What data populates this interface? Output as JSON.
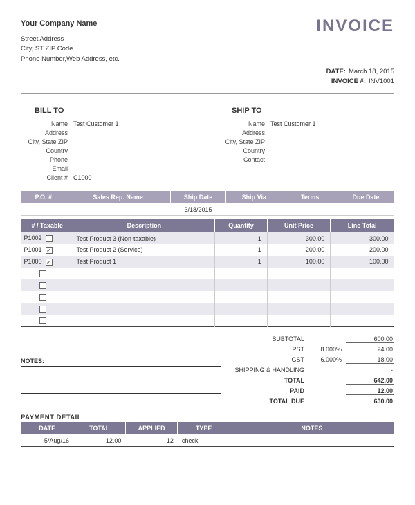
{
  "company": {
    "name": "Your Company Name",
    "line1": "Street Address",
    "line2": "City, ST  ZIP Code",
    "line3": "Phone Number,Web Address, etc."
  },
  "doc": {
    "title": "INVOICE",
    "date_label": "DATE:",
    "date": "March 18, 2015",
    "num_label": "INVOICE #:",
    "num": "INV1001"
  },
  "bill": {
    "title": "BILL TO",
    "labels": {
      "name": "Name",
      "address": "Address",
      "csz": "City, State ZIP",
      "country": "Country",
      "phone": "Phone",
      "email": "Email",
      "client": "Client #"
    },
    "vals": {
      "name": "Test Customer 1",
      "address": "",
      "csz": "",
      "country": "",
      "phone": "",
      "email": "",
      "client": "C1000"
    }
  },
  "ship": {
    "title": "SHIP TO",
    "labels": {
      "name": "Name",
      "address": "Address",
      "csz": "City, State ZIP",
      "country": "Country",
      "contact": "Contact"
    },
    "vals": {
      "name": "Test Customer 1",
      "address": "",
      "csz": "",
      "country": "",
      "contact": ""
    }
  },
  "order_hdr": {
    "po": "P.O. #",
    "rep": "Sales Rep. Name",
    "sdate": "Ship Date",
    "svia": "Ship Via",
    "terms": "Terms",
    "due": "Due Date"
  },
  "order_val": {
    "po": "",
    "rep": "",
    "sdate": "3/18/2015",
    "svia": "",
    "terms": "",
    "due": ""
  },
  "items_hdr": {
    "num": "# / Taxable",
    "desc": "Description",
    "qty": "Quantity",
    "price": "Unit Price",
    "total": "Line Total"
  },
  "items": [
    {
      "num": "P1002",
      "tax": false,
      "desc": "Test Product 3 (Non-taxable)",
      "qty": "1",
      "price": "300.00",
      "total": "300.00"
    },
    {
      "num": "P1001",
      "tax": true,
      "desc": "Test Product 2 (Service)",
      "qty": "1",
      "price": "200.00",
      "total": "200.00"
    },
    {
      "num": "P1000",
      "tax": true,
      "desc": "Test Product 1",
      "qty": "1",
      "price": "100.00",
      "total": "100.00"
    }
  ],
  "blank_rows": 5,
  "totals": {
    "subtotal_label": "SUBTOTAL",
    "subtotal": "600.00",
    "pst_label": "PST",
    "pst_pct": "8.000%",
    "pst": "24.00",
    "gst_label": "GST",
    "gst_pct": "6.000%",
    "gst": "18.00",
    "ship_label": "SHIPPING & HANDLING",
    "ship": "-",
    "total_label": "TOTAL",
    "total": "642.00",
    "paid_label": "PAID",
    "paid": "12.00",
    "due_label": "TOTAL DUE",
    "due": "630.00"
  },
  "notes_label": "NOTES:",
  "payment": {
    "title": "PAYMENT DETAIL",
    "hdr": {
      "date": "DATE",
      "total": "TOTAL",
      "applied": "APPLIED",
      "type": "TYPE",
      "notes": "NOTES"
    },
    "rows": [
      {
        "date": "5/Aug/16",
        "total": "12.00",
        "applied": "12",
        "type": "check",
        "notes": ""
      }
    ]
  },
  "colors": {
    "accent_light": "#a7a2b8",
    "accent_dark": "#7d7994"
  }
}
